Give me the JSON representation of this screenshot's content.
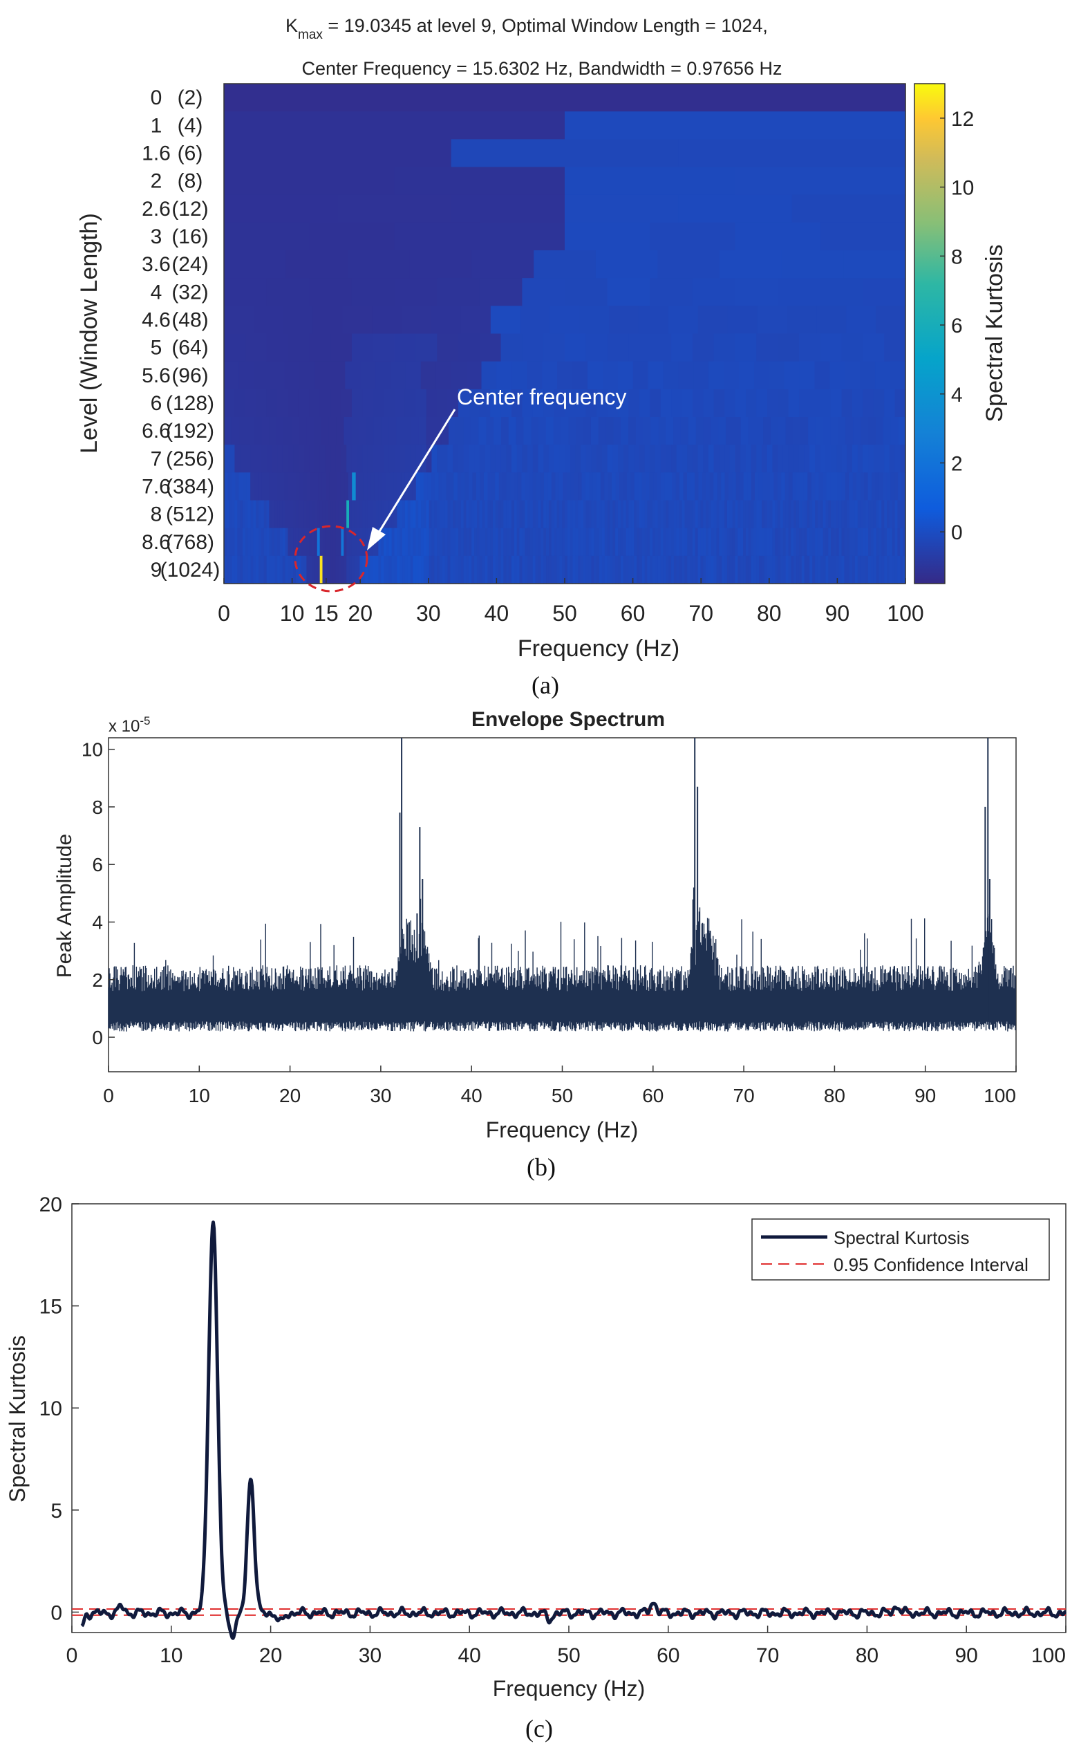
{
  "chart_data": [
    {
      "type": "heatmap",
      "panel": "(a)",
      "title_line1": "K",
      "title_sub": "max",
      "title_rest": " = 19.0345 at level 9, Optimal Window Length = 1024,",
      "title_line2": "Center Frequency = 15.6302 Hz, Bandwidth = 0.97656 Hz",
      "xlabel": "Frequency (Hz)",
      "ylabel": "Level (Window Length)",
      "xlim": [
        0,
        100
      ],
      "x_ticks": [
        0,
        10,
        15,
        20,
        30,
        40,
        50,
        60,
        70,
        80,
        90,
        100
      ],
      "levels": [
        "0",
        "1",
        "1.6",
        "2",
        "2.6",
        "3",
        "3.6",
        "4",
        "4.6",
        "5",
        "5.6",
        "6",
        "6.6",
        "7",
        "7.6",
        "8",
        "8.6",
        "9"
      ],
      "window_lengths": [
        "(2)",
        "(4)",
        "(6)",
        "(8)",
        "(12)",
        "(16)",
        "(24)",
        "(32)",
        "(48)",
        "(64)",
        "(96)",
        "(128)",
        "(192)",
        "(256)",
        "(384)",
        "(512)",
        "(768)",
        "(1024)"
      ],
      "colorbar_label": "Spectral Kurtosis",
      "colorbar_range": [
        -1.5,
        13
      ],
      "colorbar_ticks": [
        0,
        2,
        4,
        6,
        8,
        10,
        12
      ],
      "annotation": "Center frequency",
      "hot_cells": [
        {
          "level": "9",
          "freq": 14.2,
          "value": 12.5
        },
        {
          "level": "8",
          "freq": 18.0,
          "value": 6.0
        },
        {
          "level": "7.6",
          "freq": 19.0,
          "value": 3.5
        },
        {
          "level": "8.6",
          "freq": 14.0,
          "value": 2.0
        },
        {
          "level": "8.6",
          "freq": 17.5,
          "value": 2.2
        }
      ]
    },
    {
      "type": "line",
      "panel": "(b)",
      "title": "Envelope Spectrum",
      "xlabel": "Frequency (Hz)",
      "ylabel": "Peak Amplitude",
      "y_exponent": "x 10",
      "y_exponent_power": "-5",
      "xlim": [
        0,
        100
      ],
      "ylim": [
        -1.2,
        10.4
      ],
      "x_ticks": [
        "0",
        "10",
        "20",
        "30",
        "40",
        "50",
        "60",
        "70",
        "80",
        "90",
        "100"
      ],
      "y_ticks": [
        "0",
        "2",
        "4",
        "6",
        "8",
        "10"
      ],
      "noise_band": [
        0.2,
        2.5
      ],
      "peaks": [
        {
          "x": 32.3,
          "y": 10.4
        },
        {
          "x": 32.1,
          "y": 7.8
        },
        {
          "x": 34.3,
          "y": 7.3
        },
        {
          "x": 34.6,
          "y": 5.5
        },
        {
          "x": 34.0,
          "y": 4.3
        },
        {
          "x": 64.6,
          "y": 10.4
        },
        {
          "x": 64.9,
          "y": 8.7
        },
        {
          "x": 64.5,
          "y": 5.2
        },
        {
          "x": 66.3,
          "y": 3.7
        },
        {
          "x": 96.9,
          "y": 10.4
        },
        {
          "x": 96.6,
          "y": 8.0
        },
        {
          "x": 97.1,
          "y": 5.5
        }
      ]
    },
    {
      "type": "line",
      "panel": "(c)",
      "xlabel": "Frequency (Hz)",
      "ylabel": "Spectral Kurtosis",
      "xlim": [
        0,
        100
      ],
      "ylim": [
        -1,
        20
      ],
      "x_ticks": [
        "0",
        "10",
        "20",
        "30",
        "40",
        "50",
        "60",
        "70",
        "80",
        "90",
        "100"
      ],
      "y_ticks": [
        "0",
        "5",
        "10",
        "15",
        "20"
      ],
      "legend": [
        "Spectral Kurtosis",
        "0.95 Confidence Interval"
      ],
      "confidence_interval": [
        -0.15,
        0.15
      ],
      "peaks": [
        {
          "x": 14.2,
          "y": 19.2,
          "w": 0.45
        },
        {
          "x": 18.0,
          "y": 6.7,
          "w": 0.35
        },
        {
          "x": 16.2,
          "y": -1.0,
          "w": 0.35
        },
        {
          "x": 1.0,
          "y": -0.8,
          "w": 0.2
        },
        {
          "x": 58.5,
          "y": 0.55,
          "w": 0.3
        },
        {
          "x": 83.0,
          "y": 0.35,
          "w": 0.3
        },
        {
          "x": 5.0,
          "y": 0.3,
          "w": 0.3
        },
        {
          "x": 48.0,
          "y": -0.3,
          "w": 0.3
        },
        {
          "x": 21.0,
          "y": -0.5,
          "w": 0.3
        }
      ]
    }
  ]
}
